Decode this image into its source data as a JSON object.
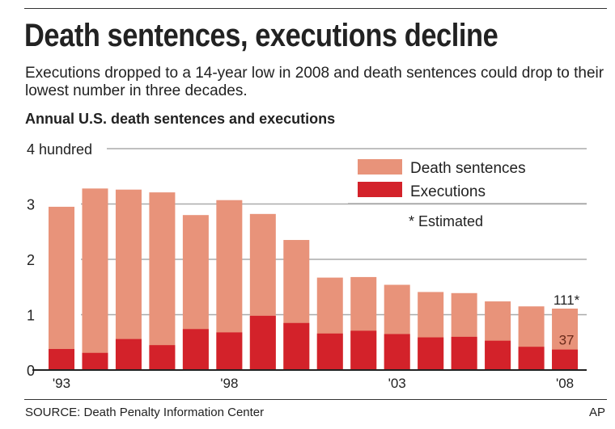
{
  "title": "Death sentences, executions decline",
  "subtitle": "Executions dropped to a 14-year low in 2008 and death sentences could drop to their lowest number in three decades.",
  "source": "SOURCE: Death Penalty Information Center",
  "credit": "AP",
  "colors": {
    "death_sentences": "#E8937A",
    "executions": "#D3222A"
  },
  "chart_data": {
    "type": "bar",
    "stacked": "overlay",
    "title": "Annual U.S. death sentences and executions",
    "ylabel": "",
    "y_unit_label": "4 hundred",
    "ylim": [
      0,
      400
    ],
    "yticks": [
      "0",
      "1",
      "2",
      "3",
      "4 hundred"
    ],
    "ytick_values": [
      0,
      100,
      200,
      300,
      400
    ],
    "grid": true,
    "categories": [
      "1993",
      "1994",
      "1995",
      "1996",
      "1997",
      "1998",
      "1999",
      "2000",
      "2001",
      "2002",
      "2003",
      "2004",
      "2005",
      "2006",
      "2007",
      "2008"
    ],
    "xtick_labels": [
      {
        "index": 0,
        "label": "'93"
      },
      {
        "index": 5,
        "label": "'98"
      },
      {
        "index": 10,
        "label": "'03"
      },
      {
        "index": 15,
        "label": "'08"
      }
    ],
    "series": [
      {
        "name": "Death sentences",
        "values": [
          295,
          328,
          326,
          321,
          280,
          307,
          282,
          235,
          167,
          168,
          154,
          141,
          139,
          124,
          115,
          111
        ]
      },
      {
        "name": "Executions",
        "values": [
          38,
          31,
          56,
          45,
          74,
          68,
          98,
          85,
          66,
          71,
          65,
          59,
          60,
          53,
          42,
          37
        ]
      }
    ],
    "data_labels": [
      {
        "series": "Death sentences",
        "index": 15,
        "label": "111*"
      },
      {
        "series": "Executions",
        "index": 15,
        "label": "37"
      }
    ],
    "legend": {
      "placement": "top-right",
      "note": "* Estimated"
    }
  }
}
